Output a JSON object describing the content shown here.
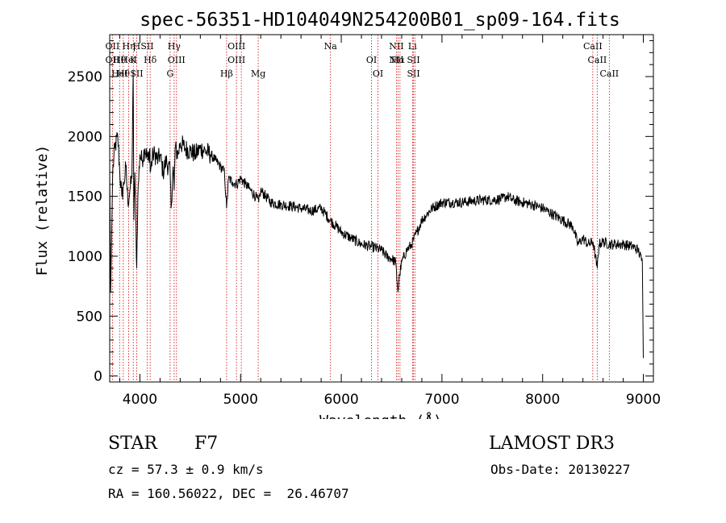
{
  "chart_data": {
    "type": "line",
    "title": "spec-56351-HD104049N254200B01_sp09-164.fits",
    "xlabel": "Wavelength (Å)",
    "ylabel": "Flux (relative)",
    "xlim": [
      3700,
      9100
    ],
    "ylim": [
      -50,
      2850
    ],
    "xticks": [
      4000,
      5000,
      6000,
      7000,
      8000,
      9000
    ],
    "yticks": [
      0,
      500,
      1000,
      1500,
      2000,
      2500
    ],
    "series": [
      {
        "name": "flux",
        "x": [
          3700,
          3710,
          3730,
          3750,
          3780,
          3800,
          3820,
          3840,
          3860,
          3880,
          3900,
          3920,
          3933,
          3940,
          3950,
          3968,
          3980,
          4000,
          4020,
          4050,
          4080,
          4100,
          4102,
          4130,
          4150,
          4180,
          4200,
          4230,
          4260,
          4300,
          4310,
          4330,
          4340,
          4350,
          4380,
          4400,
          4450,
          4500,
          4550,
          4600,
          4650,
          4700,
          4750,
          4800,
          4840,
          4861,
          4880,
          4920,
          4960,
          5000,
          5050,
          5100,
          5150,
          5180,
          5200,
          5250,
          5300,
          5400,
          5500,
          5600,
          5700,
          5800,
          5890,
          5950,
          6000,
          6100,
          6200,
          6300,
          6400,
          6450,
          6500,
          6540,
          6563,
          6580,
          6600,
          6650,
          6700,
          6750,
          6800,
          6850,
          6900,
          7000,
          7100,
          7200,
          7300,
          7400,
          7500,
          7600,
          7650,
          7700,
          7800,
          7900,
          8000,
          8100,
          8200,
          8300,
          8350,
          8400,
          8450,
          8500,
          8542,
          8560,
          8600,
          8662,
          8700,
          8800,
          8900,
          8950,
          8990,
          9000
        ],
        "values": [
          1700,
          700,
          1700,
          1900,
          2000,
          1700,
          1500,
          1600,
          1750,
          1450,
          1550,
          1650,
          2550,
          1300,
          1700,
          900,
          1500,
          1850,
          1800,
          1900,
          1800,
          1900,
          1700,
          1850,
          1850,
          1800,
          1850,
          1700,
          1800,
          1700,
          1400,
          1750,
          1550,
          1900,
          1850,
          1950,
          1900,
          1880,
          1850,
          1900,
          1880,
          1850,
          1800,
          1750,
          1700,
          1400,
          1650,
          1620,
          1600,
          1650,
          1600,
          1550,
          1500,
          1450,
          1550,
          1500,
          1450,
          1430,
          1420,
          1400,
          1380,
          1400,
          1300,
          1250,
          1200,
          1150,
          1100,
          1080,
          1050,
          1000,
          980,
          950,
          700,
          850,
          950,
          1050,
          1100,
          1200,
          1300,
          1350,
          1400,
          1450,
          1450,
          1450,
          1460,
          1470,
          1470,
          1480,
          1500,
          1470,
          1450,
          1430,
          1400,
          1350,
          1300,
          1250,
          1100,
          1150,
          1100,
          1120,
          900,
          1100,
          1120,
          1100,
          1100,
          1100,
          1080,
          1050,
          950,
          150
        ]
      }
    ],
    "lines": [
      {
        "x": 3727,
        "labels": [
          "OII",
          "OII"
        ]
      },
      {
        "x": 3798,
        "labels": [
          "Hθ",
          "HeI"
        ]
      },
      {
        "x": 3835,
        "labels": [
          "Hθ"
        ]
      },
      {
        "x": 3889,
        "labels": [
          "Hη",
          "HeI"
        ]
      },
      {
        "x": 3934,
        "labels": [
          "K"
        ]
      },
      {
        "x": 3968,
        "labels": [
          "SII",
          "H"
        ]
      },
      {
        "x": 4072,
        "labels": [
          "SII"
        ]
      },
      {
        "x": 4102,
        "labels": [
          "Hδ"
        ]
      },
      {
        "x": 4300,
        "labels": [
          "G"
        ]
      },
      {
        "x": 4340,
        "labels": [
          "Hγ"
        ]
      },
      {
        "x": 4363,
        "labels": [
          "OIII"
        ]
      },
      {
        "x": 4861,
        "labels": [
          "Hβ"
        ]
      },
      {
        "x": 4959,
        "labels": [
          "OIII",
          "OIII"
        ]
      },
      {
        "x": 5007,
        "labels": []
      },
      {
        "x": 5175,
        "labels": [
          "Mg"
        ]
      },
      {
        "x": 5893,
        "labels": [
          "Na"
        ]
      },
      {
        "x": 6300,
        "labels": [
          "OI"
        ]
      },
      {
        "x": 6364,
        "labels": [
          "OI"
        ]
      },
      {
        "x": 6548,
        "labels": [
          "NII",
          "NII"
        ]
      },
      {
        "x": 6563,
        "labels": [
          "Hα"
        ]
      },
      {
        "x": 6583,
        "labels": []
      },
      {
        "x": 6707,
        "labels": [
          "Li"
        ]
      },
      {
        "x": 6717,
        "labels": [
          "SII",
          "SII"
        ]
      },
      {
        "x": 6731,
        "labels": []
      },
      {
        "x": 8498,
        "labels": [
          "CaII"
        ]
      },
      {
        "x": 8542,
        "labels": [
          "CaII"
        ]
      },
      {
        "x": 8662,
        "labels": [
          "CaII"
        ]
      }
    ]
  },
  "info": {
    "object_type": "STAR",
    "subclass": "F7",
    "redshift": "cz = 57.3 ± 0.9 km/s",
    "coords": "RA = 160.56022, DEC =  26.46707",
    "survey": "LAMOST DR3",
    "obs_date": "Obs-Date: 20130227"
  }
}
